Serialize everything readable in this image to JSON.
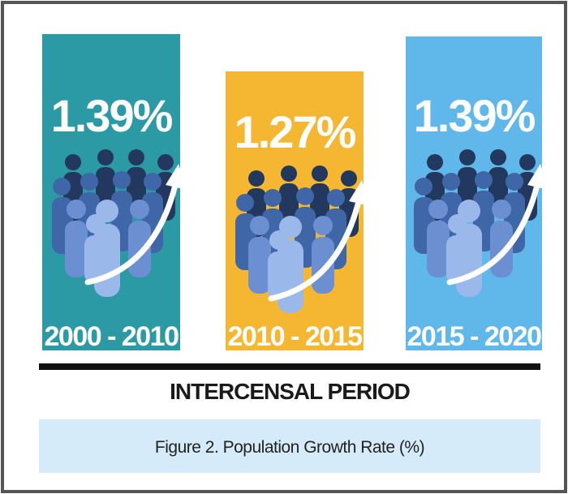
{
  "panels": [
    {
      "rate": "1.39%",
      "period": "2000 - 2010"
    },
    {
      "rate": "1.27%",
      "period": "2010 - 2015"
    },
    {
      "rate": "1.39%",
      "period": "2015 - 2020"
    }
  ],
  "axis_label": "INTERCENSAL PERIOD",
  "caption": "Figure 2. Population Growth Rate (%)"
}
